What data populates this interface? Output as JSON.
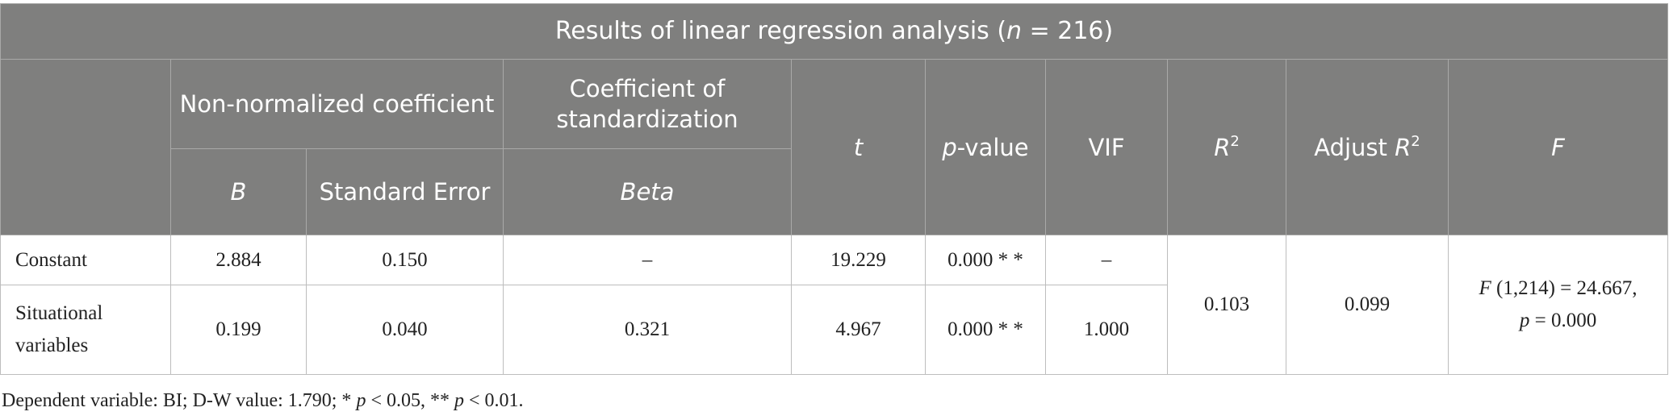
{
  "title": [
    "Results of linear regression analysis (",
    "n",
    " = 216)"
  ],
  "header": {
    "non_normalized": "Non-normalized coefficient",
    "standardization": "Coefficient of standardization",
    "t": "t",
    "p_value": [
      "p",
      "-value"
    ],
    "vif": "VIF",
    "r2": [
      "R",
      "2"
    ],
    "adjust_r2": [
      "Adjust ",
      "R",
      "2"
    ],
    "f": "F",
    "b": "B",
    "standard_error": "Standard Error",
    "beta": "Beta"
  },
  "rows": [
    [
      "Constant",
      "2.884",
      "0.150",
      "–",
      "19.229",
      "0.000 * *",
      "–"
    ],
    [
      "Situational variables",
      "0.199",
      "0.040",
      "0.321",
      "4.967",
      "0.000 * *",
      "1.000"
    ]
  ],
  "r2_value": "0.103",
  "adjust_r2_value": "0.099",
  "f_value": [
    "F",
    " (1,214) = 24.667,",
    "p",
    " = 0.000"
  ],
  "footnote": [
    "Dependent variable: BI; D-W value: 1.790; * ",
    "p",
    " < 0.05, ** ",
    "p",
    " < 0.01."
  ]
}
